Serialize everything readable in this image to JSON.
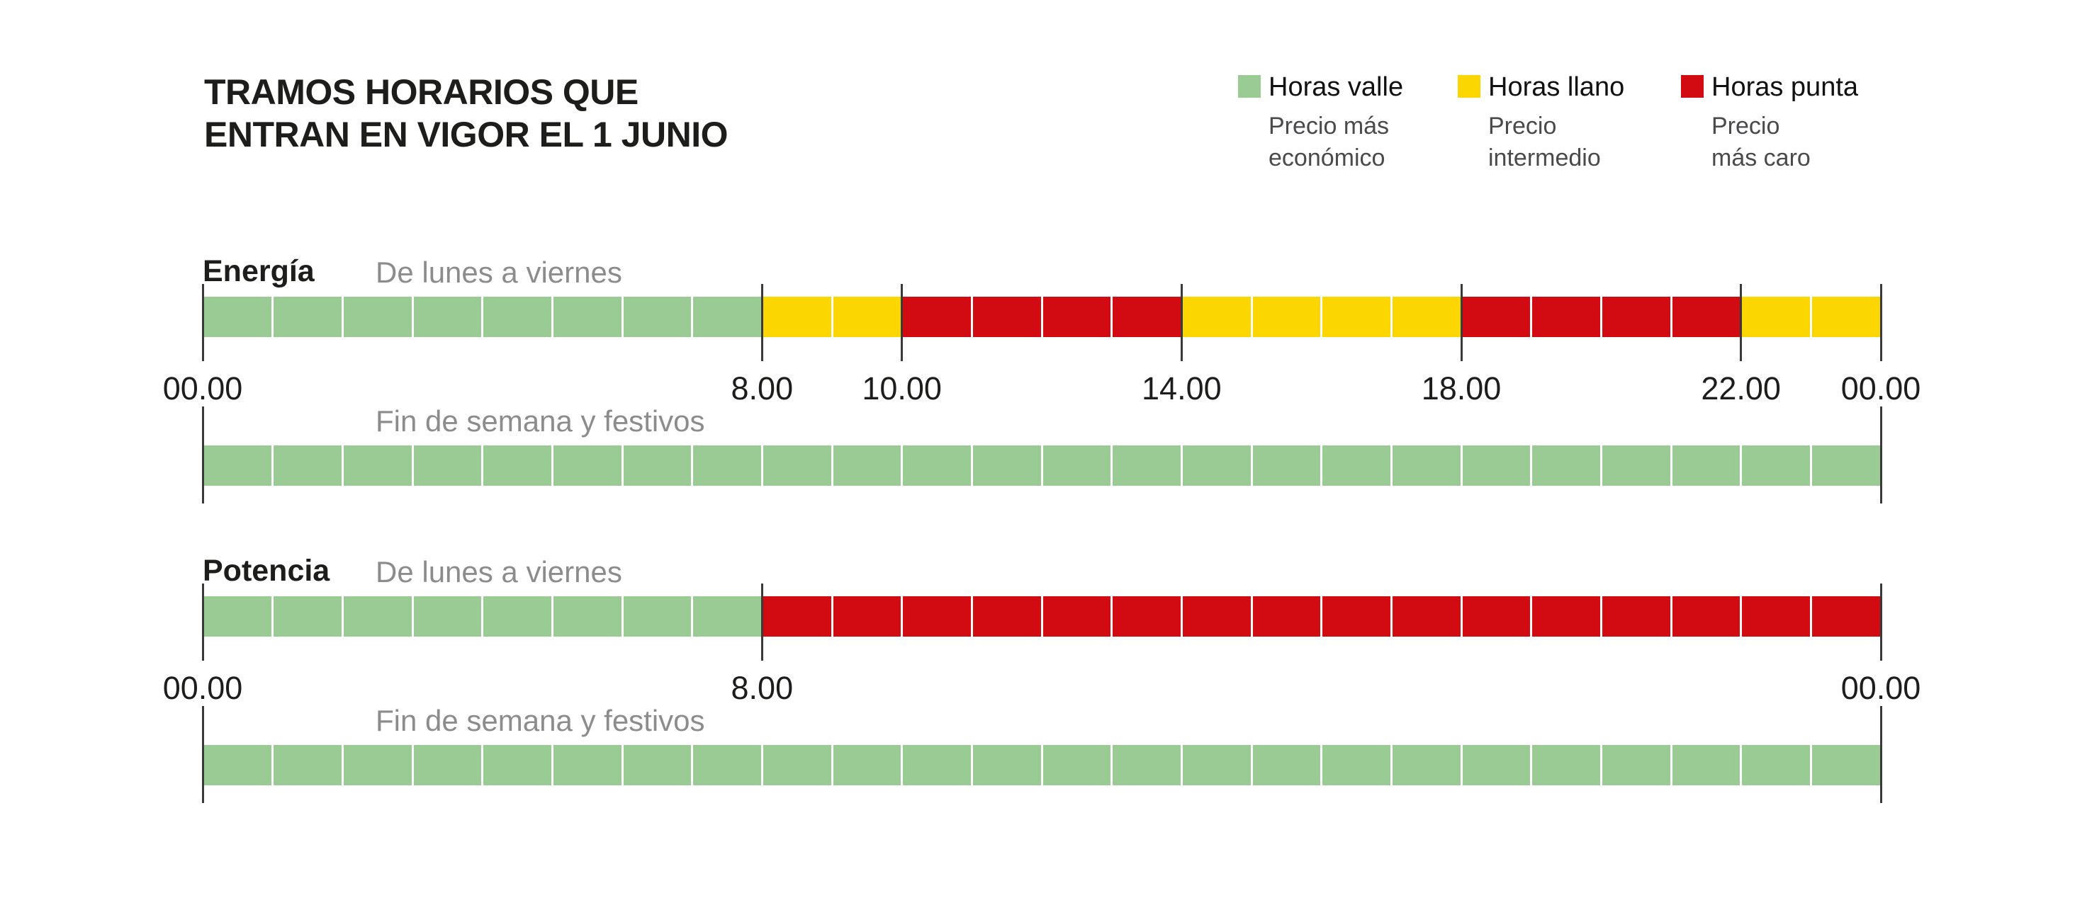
{
  "title": {
    "line1": "TRAMOS HORARIOS QUE",
    "line2": "ENTRAN EN VIGOR EL 1 JUNIO"
  },
  "colors": {
    "valle": "#9bcb95",
    "llano": "#fcd600",
    "punta": "#d20b12",
    "tick": "#3a3a3a",
    "text": "#1d1d1b",
    "muted_label": "#8c8c8c",
    "legend_desc": "#4a4a4c"
  },
  "legend": {
    "items": [
      {
        "tier": "valle",
        "label": "Horas valle",
        "desc_lines": [
          "Precio más",
          "económico"
        ]
      },
      {
        "tier": "llano",
        "label": "Horas llano",
        "desc_lines": [
          "Precio",
          "intermedio"
        ]
      },
      {
        "tier": "punta",
        "label": "Horas punta",
        "desc_lines": [
          "Precio",
          "más caro"
        ]
      }
    ]
  },
  "chart_data": {
    "type": "timeline-bars",
    "title": "TRAMOS HORARIOS QUE ENTRAN EN VIGOR EL 1 JUNIO",
    "x_range_hours": [
      0,
      24
    ],
    "tiers": {
      "valle": {
        "name": "Horas valle",
        "meaning": "Precio más económico"
      },
      "llano": {
        "name": "Horas llano",
        "meaning": "Precio intermedio"
      },
      "punta": {
        "name": "Horas punta",
        "meaning": "Precio más caro"
      }
    },
    "sections": [
      {
        "name": "Energía",
        "rows": [
          {
            "label": "De lunes a viernes",
            "segments": [
              {
                "tier": "valle",
                "from": 0,
                "to": 8
              },
              {
                "tier": "llano",
                "from": 8,
                "to": 10
              },
              {
                "tier": "punta",
                "from": 10,
                "to": 14
              },
              {
                "tier": "llano",
                "from": 14,
                "to": 18
              },
              {
                "tier": "punta",
                "from": 18,
                "to": 22
              },
              {
                "tier": "llano",
                "from": 22,
                "to": 24
              }
            ],
            "ticks": [
              0,
              8,
              10,
              14,
              18,
              22,
              24
            ],
            "tick_labels": [
              "00.00",
              "8.00",
              "10.00",
              "14.00",
              "18.00",
              "22.00",
              "00.00"
            ]
          },
          {
            "label": "Fin de semana y festivos",
            "segments": [
              {
                "tier": "valle",
                "from": 0,
                "to": 24
              }
            ],
            "ticks": [
              0,
              24
            ],
            "tick_labels": []
          }
        ]
      },
      {
        "name": "Potencia",
        "rows": [
          {
            "label": "De lunes a viernes",
            "segments": [
              {
                "tier": "valle",
                "from": 0,
                "to": 8
              },
              {
                "tier": "punta",
                "from": 8,
                "to": 24
              }
            ],
            "ticks": [
              0,
              8,
              24
            ],
            "tick_labels": [
              "00.00",
              "8.00",
              "00.00"
            ]
          },
          {
            "label": "Fin de semana y festivos",
            "segments": [
              {
                "tier": "valle",
                "from": 0,
                "to": 24
              }
            ],
            "ticks": [
              0,
              24
            ],
            "tick_labels": []
          }
        ]
      }
    ]
  }
}
